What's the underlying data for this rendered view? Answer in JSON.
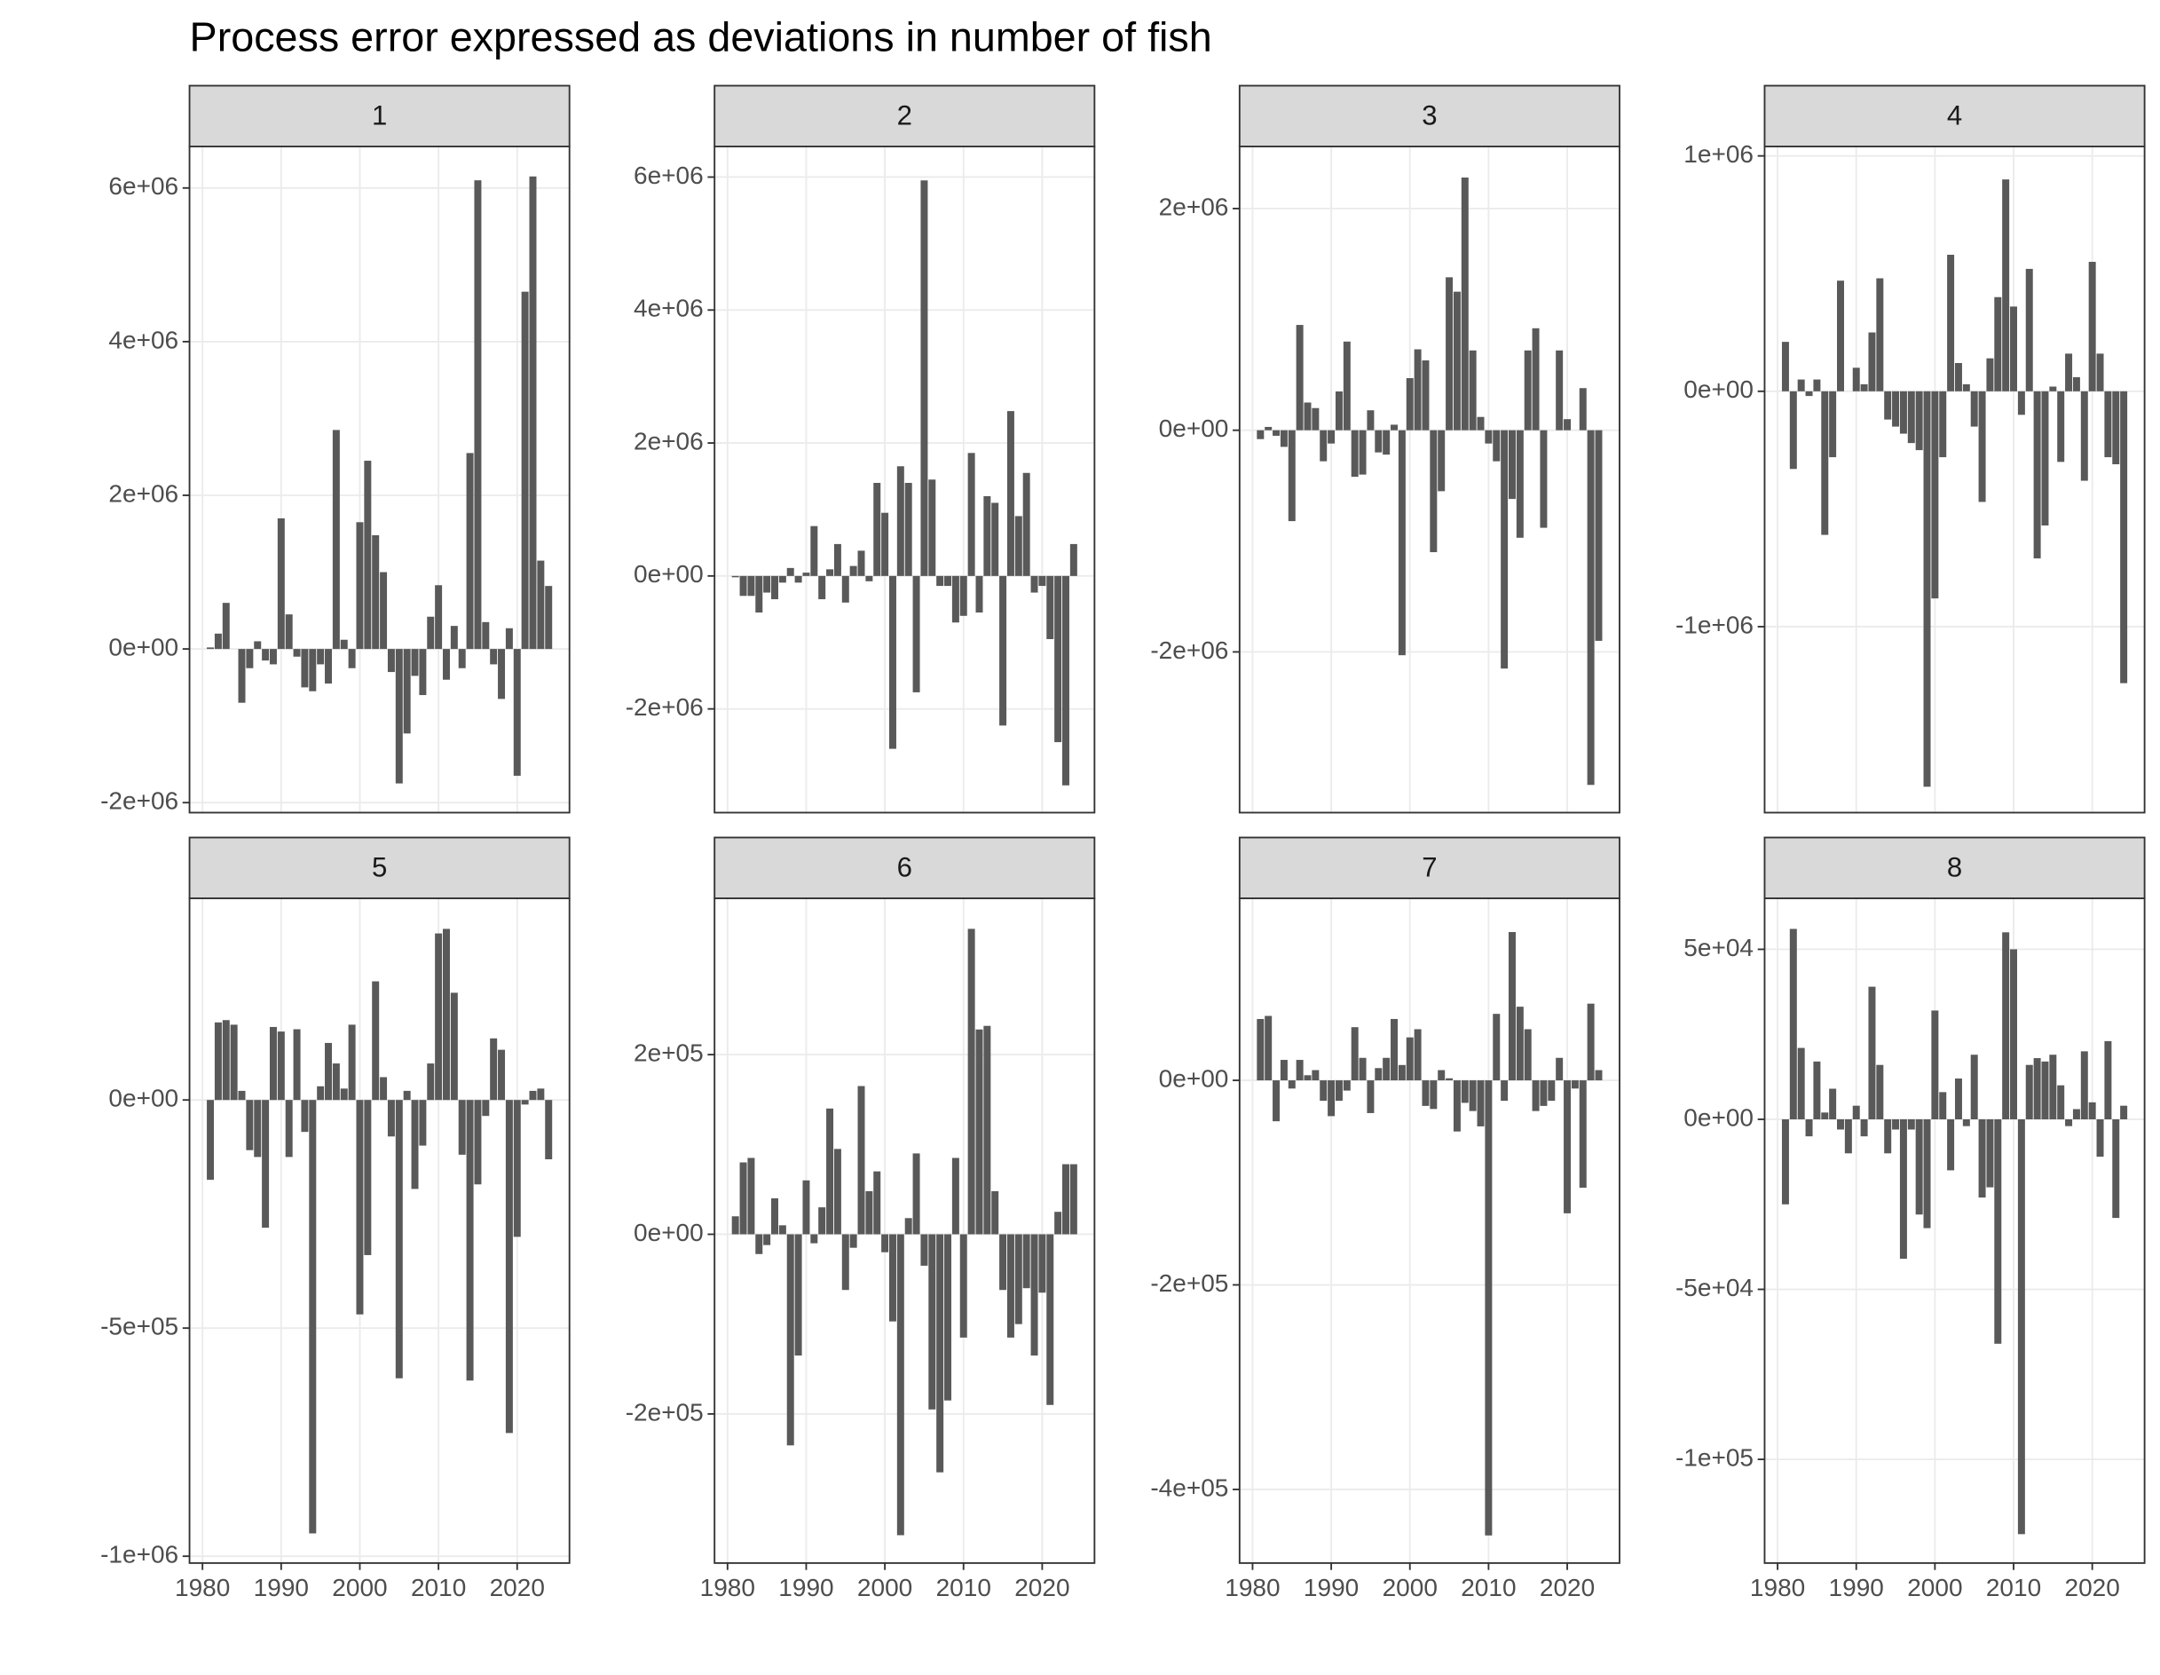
{
  "title": "Process error expressed as deviations in number of fish",
  "chart_data": [
    {
      "type": "bar",
      "title": "1",
      "color": "#595959",
      "grid": true,
      "x": [
        1981,
        1982,
        1983,
        1984,
        1985,
        1986,
        1987,
        1988,
        1989,
        1990,
        1991,
        1992,
        1993,
        1994,
        1995,
        1996,
        1997,
        1998,
        1999,
        2000,
        2001,
        2002,
        2003,
        2004,
        2005,
        2006,
        2007,
        2008,
        2009,
        2010,
        2011,
        2012,
        2013,
        2014,
        2015,
        2016,
        2017,
        2018,
        2019,
        2020,
        2021,
        2022,
        2023,
        2024
      ],
      "values": [
        20000.0,
        200000.0,
        600000.0,
        0,
        -700000.0,
        -250000.0,
        100000.0,
        -150000.0,
        -200000.0,
        1700000.0,
        450000.0,
        -100000.0,
        -500000.0,
        -550000.0,
        -200000.0,
        -450000.0,
        2850000.0,
        120000.0,
        -250000.0,
        1650000.0,
        2450000.0,
        1480000.0,
        1000000.0,
        -300000.0,
        -1750000.0,
        -1100000.0,
        -350000.0,
        -600000.0,
        420000.0,
        830000.0,
        -400000.0,
        300000.0,
        -250000.0,
        2550000.0,
        6100000.0,
        350000.0,
        -200000.0,
        -650000.0,
        270000.0,
        -1650000.0,
        4650000.0,
        6150000.0,
        1150000.0,
        820000.0
      ],
      "xlim": [
        1978.35,
        2026.65
      ],
      "xticks": [
        1980,
        1990,
        2000,
        2010,
        2020
      ],
      "ylim": [
        -2130000.0,
        6540000.0
      ],
      "yticks": [
        {
          "value": -2000000.0,
          "label": "-2e+06"
        },
        {
          "value": 0,
          "label": "0e+00"
        },
        {
          "value": 2000000.0,
          "label": "2e+06"
        },
        {
          "value": 4000000.0,
          "label": "4e+06"
        },
        {
          "value": 6000000.0,
          "label": "6e+06"
        }
      ]
    },
    {
      "type": "bar",
      "title": "2",
      "color": "#595959",
      "grid": true,
      "x": [
        1981,
        1982,
        1983,
        1984,
        1985,
        1986,
        1987,
        1988,
        1989,
        1990,
        1991,
        1992,
        1993,
        1994,
        1995,
        1996,
        1997,
        1998,
        1999,
        2000,
        2001,
        2002,
        2003,
        2004,
        2005,
        2006,
        2007,
        2008,
        2009,
        2010,
        2011,
        2012,
        2013,
        2014,
        2015,
        2016,
        2017,
        2018,
        2019,
        2020,
        2021,
        2022,
        2023,
        2024
      ],
      "values": [
        -20000.0,
        -300000.0,
        -300000.0,
        -550000.0,
        -250000.0,
        -350000.0,
        -100000.0,
        120000.0,
        -100000.0,
        50000.0,
        750000.0,
        -350000.0,
        100000.0,
        480000.0,
        -400000.0,
        150000.0,
        380000.0,
        -80000.0,
        1400000.0,
        950000.0,
        -2600000.0,
        1650000.0,
        1400000.0,
        -1750000.0,
        5950000.0,
        1450000.0,
        -150000.0,
        -150000.0,
        -700000.0,
        -600000.0,
        1850000.0,
        -550000.0,
        1200000.0,
        1100000.0,
        -2250000.0,
        2480000.0,
        900000.0,
        1550000.0,
        -250000.0,
        -150000.0,
        -950000.0,
        -2500000.0,
        -3150000.0,
        480000.0
      ],
      "xlim": [
        1978.35,
        2026.65
      ],
      "xticks": [
        1980,
        1990,
        2000,
        2010,
        2020
      ],
      "ylim": [
        -3560000.0,
        6460000.0
      ],
      "yticks": [
        {
          "value": -2000000.0,
          "label": "-2e+06"
        },
        {
          "value": 0,
          "label": "0e+00"
        },
        {
          "value": 2000000.0,
          "label": "2e+06"
        },
        {
          "value": 4000000.0,
          "label": "4e+06"
        },
        {
          "value": 6000000.0,
          "label": "6e+06"
        }
      ]
    },
    {
      "type": "bar",
      "title": "3",
      "color": "#595959",
      "grid": true,
      "x": [
        1981,
        1982,
        1983,
        1984,
        1985,
        1986,
        1987,
        1988,
        1989,
        1990,
        1991,
        1992,
        1993,
        1994,
        1995,
        1996,
        1997,
        1998,
        1999,
        2000,
        2001,
        2002,
        2003,
        2004,
        2005,
        2006,
        2007,
        2008,
        2009,
        2010,
        2011,
        2012,
        2013,
        2014,
        2015,
        2016,
        2017,
        2018,
        2019,
        2020,
        2021,
        2022,
        2023,
        2024
      ],
      "values": [
        -80000.0,
        30000.0,
        -50000.0,
        -150000.0,
        -820000.0,
        950000.0,
        250000.0,
        200000.0,
        -280000.0,
        -120000.0,
        350000.0,
        800000.0,
        -420000.0,
        -400000.0,
        180000.0,
        -200000.0,
        -220000.0,
        50000.0,
        -2030000.0,
        470000.0,
        730000.0,
        630000.0,
        -1100000.0,
        -550000.0,
        1380000.0,
        1250000.0,
        2280000.0,
        720000.0,
        120000.0,
        -120000.0,
        -280000.0,
        -2150000.0,
        -620000.0,
        -970000.0,
        720000.0,
        920000.0,
        -880000.0,
        0,
        720000.0,
        100000.0,
        0,
        380000.0,
        -3200000.0,
        -1900000.0
      ],
      "xlim": [
        1978.35,
        2026.65
      ],
      "xticks": [
        1980,
        1990,
        2000,
        2010,
        2020
      ],
      "ylim": [
        -3450000.0,
        2560000.0
      ],
      "yticks": [
        {
          "value": -2000000.0,
          "label": "-2e+06"
        },
        {
          "value": 0,
          "label": "0e+00"
        },
        {
          "value": 2000000.0,
          "label": "2e+06"
        }
      ]
    },
    {
      "type": "bar",
      "title": "4",
      "color": "#595959",
      "grid": true,
      "x": [
        1981,
        1982,
        1983,
        1984,
        1985,
        1986,
        1987,
        1988,
        1989,
        1990,
        1991,
        1992,
        1993,
        1994,
        1995,
        1996,
        1997,
        1998,
        1999,
        2000,
        2001,
        2002,
        2003,
        2004,
        2005,
        2006,
        2007,
        2008,
        2009,
        2010,
        2011,
        2012,
        2013,
        2014,
        2015,
        2016,
        2017,
        2018,
        2019,
        2020,
        2021,
        2022,
        2023,
        2024
      ],
      "values": [
        210000.0,
        -330000.0,
        50000.0,
        -20000.0,
        50000.0,
        -610000.0,
        -280000.0,
        470000.0,
        0,
        100000.0,
        30000.0,
        250000.0,
        480000.0,
        -120000.0,
        -150000.0,
        -180000.0,
        -220000.0,
        -250000.0,
        -1680000.0,
        -880000.0,
        -280000.0,
        580000.0,
        120000.0,
        30000.0,
        -150000.0,
        -470000.0,
        140000.0,
        400000.0,
        900000.0,
        360000.0,
        -100000.0,
        520000.0,
        -710000.0,
        -570000.0,
        20000.0,
        -300000.0,
        160000.0,
        60000.0,
        -380000.0,
        550000.0,
        160000.0,
        -280000.0,
        -310000.0,
        -1240000.0
      ],
      "xlim": [
        1978.35,
        2026.65
      ],
      "xticks": [
        1980,
        1990,
        2000,
        2010,
        2020
      ],
      "ylim": [
        -1790000.0,
        1040000.0
      ],
      "yticks": [
        {
          "value": -1000000.0,
          "label": "-1e+06"
        },
        {
          "value": 0,
          "label": "0e+00"
        },
        {
          "value": 1000000.0,
          "label": "1e+06"
        }
      ]
    },
    {
      "type": "bar",
      "title": "5",
      "color": "#595959",
      "grid": true,
      "x": [
        1981,
        1982,
        1983,
        1984,
        1985,
        1986,
        1987,
        1988,
        1989,
        1990,
        1991,
        1992,
        1993,
        1994,
        1995,
        1996,
        1997,
        1998,
        1999,
        2000,
        2001,
        2002,
        2003,
        2004,
        2005,
        2006,
        2007,
        2008,
        2009,
        2010,
        2011,
        2012,
        2013,
        2014,
        2015,
        2016,
        2017,
        2018,
        2019,
        2020,
        2021,
        2022,
        2023,
        2024
      ],
      "values": [
        -175000.0,
        170000.0,
        175000.0,
        165000.0,
        20000.0,
        -110000.0,
        -125000.0,
        -280000.0,
        160000.0,
        150000.0,
        -125000.0,
        155000.0,
        -70000.0,
        -950000.0,
        30000.0,
        125000.0,
        80000.0,
        25000.0,
        165000.0,
        -470000.0,
        -340000.0,
        260000.0,
        50000.0,
        -80000.0,
        -610000.0,
        20000.0,
        -195000.0,
        -100000.0,
        80000.0,
        365000.0,
        375000.0,
        235000.0,
        -120000.0,
        -615000.0,
        -185000.0,
        -35000.0,
        135000.0,
        110000.0,
        -730000.0,
        -300000.0,
        -10000.0,
        20000.0,
        25000.0,
        -130000.0
      ],
      "xlim": [
        1978.35,
        2026.65
      ],
      "xticks": [
        1980,
        1990,
        2000,
        2010,
        2020
      ],
      "ylim": [
        -1015000.0,
        442000.0
      ],
      "yticks": [
        {
          "value": -1000000.0,
          "label": "-1e+06"
        },
        {
          "value": -500000.0,
          "label": "-5e+05"
        },
        {
          "value": 0,
          "label": "0e+00"
        }
      ]
    },
    {
      "type": "bar",
      "title": "6",
      "color": "#595959",
      "grid": true,
      "x": [
        1981,
        1982,
        1983,
        1984,
        1985,
        1986,
        1987,
        1988,
        1989,
        1990,
        1991,
        1992,
        1993,
        1994,
        1995,
        1996,
        1997,
        1998,
        1999,
        2000,
        2001,
        2002,
        2003,
        2004,
        2005,
        2006,
        2007,
        2008,
        2009,
        2010,
        2011,
        2012,
        2013,
        2014,
        2015,
        2016,
        2017,
        2018,
        2019,
        2020,
        2021,
        2022,
        2023,
        2024
      ],
      "values": [
        20000.0,
        80000.0,
        85000.0,
        -22000.0,
        -12000.0,
        40000.0,
        10000.0,
        -235000.0,
        -135000.0,
        60000.0,
        -10000.0,
        30000.0,
        140000.0,
        95000.0,
        -62000.0,
        -15000.0,
        165000.0,
        48000.0,
        70000.0,
        -20000.0,
        -97000.0,
        -335000.0,
        18000.0,
        90000.0,
        -35000.0,
        -195000.0,
        -265000.0,
        -185000.0,
        85000.0,
        -115000.0,
        340000.0,
        228000.0,
        232000.0,
        48000.0,
        -62000.0,
        -115000.0,
        -100000.0,
        -60000.0,
        -135000.0,
        -65000.0,
        -190000.0,
        25000.0,
        78000.0,
        78000.0
      ],
      "xlim": [
        1978.35,
        2026.65
      ],
      "xticks": [
        1980,
        1990,
        2000,
        2010,
        2020
      ],
      "ylim": [
        -366000.0,
        374000.0
      ],
      "yticks": [
        {
          "value": -200000.0,
          "label": "-2e+05"
        },
        {
          "value": 0,
          "label": "0e+00"
        },
        {
          "value": 200000.0,
          "label": "2e+05"
        }
      ]
    },
    {
      "type": "bar",
      "title": "7",
      "color": "#595959",
      "grid": true,
      "x": [
        1981,
        1982,
        1983,
        1984,
        1985,
        1986,
        1987,
        1988,
        1989,
        1990,
        1991,
        1992,
        1993,
        1994,
        1995,
        1996,
        1997,
        1998,
        1999,
        2000,
        2001,
        2002,
        2003,
        2004,
        2005,
        2006,
        2007,
        2008,
        2009,
        2010,
        2011,
        2012,
        2013,
        2014,
        2015,
        2016,
        2017,
        2018,
        2019,
        2020,
        2021,
        2022,
        2023,
        2024
      ],
      "values": [
        60000.0,
        63000.0,
        -40000.0,
        20000.0,
        -8000.0,
        20000.0,
        5000.0,
        10000.0,
        -20000.0,
        -35000.0,
        -20000.0,
        -10000.0,
        52000.0,
        22000.0,
        -32000.0,
        12000.0,
        22000.0,
        60000.0,
        15000.0,
        42000.0,
        50000.0,
        -25000.0,
        -28000.0,
        10000.0,
        2000.0,
        -50000.0,
        -22000.0,
        -30000.0,
        -45000.0,
        -445000.0,
        65000.0,
        -20000.0,
        145000.0,
        72000.0,
        50000.0,
        -30000.0,
        -25000.0,
        -20000.0,
        22000.0,
        -130000.0,
        -8000.0,
        -105000.0,
        75000.0,
        10000.0
      ],
      "xlim": [
        1978.35,
        2026.65
      ],
      "xticks": [
        1980,
        1990,
        2000,
        2010,
        2020
      ],
      "ylim": [
        -472000.0,
        178000.0
      ],
      "yticks": [
        {
          "value": -400000.0,
          "label": "-4e+05"
        },
        {
          "value": -200000.0,
          "label": "-2e+05"
        },
        {
          "value": 0,
          "label": "0e+00"
        }
      ]
    },
    {
      "type": "bar",
      "title": "8",
      "color": "#595959",
      "grid": true,
      "x": [
        1981,
        1982,
        1983,
        1984,
        1985,
        1986,
        1987,
        1988,
        1989,
        1990,
        1991,
        1992,
        1993,
        1994,
        1995,
        1996,
        1997,
        1998,
        1999,
        2000,
        2001,
        2002,
        2003,
        2004,
        2005,
        2006,
        2007,
        2008,
        2009,
        2010,
        2011,
        2012,
        2013,
        2014,
        2015,
        2016,
        2017,
        2018,
        2019,
        2020,
        2021,
        2022,
        2023,
        2024
      ],
      "values": [
        -25000.0,
        56000.0,
        21000.0,
        -5000.0,
        17000.0,
        2000.0,
        9000.0,
        -3000.0,
        -10000.0,
        4000.0,
        -5000.0,
        39000.0,
        16000.0,
        -10000.0,
        -3000.0,
        -41000.0,
        -3000.0,
        -28000.0,
        -32000.0,
        32000.0,
        8000.0,
        -15000.0,
        12000.0,
        -2000.0,
        19000.0,
        -23000.0,
        -20000.0,
        -66000.0,
        55000.0,
        50000.0,
        -122000.0,
        16000.0,
        18000.0,
        17000.0,
        19000.0,
        10000.0,
        -2000.0,
        3000.0,
        20000.0,
        5000.0,
        -11000.0,
        23000.0,
        -29000.0,
        4000.0
      ],
      "xlim": [
        1978.35,
        2026.65
      ],
      "xticks": [
        1980,
        1990,
        2000,
        2010,
        2020
      ],
      "ylim": [
        -130500.0,
        65000.0
      ],
      "yticks": [
        {
          "value": -100000.0,
          "label": "-1e+05"
        },
        {
          "value": -50000.0,
          "label": "-5e+04"
        },
        {
          "value": 0,
          "label": "0e+00"
        },
        {
          "value": 50000.0,
          "label": "5e+04"
        }
      ]
    }
  ]
}
